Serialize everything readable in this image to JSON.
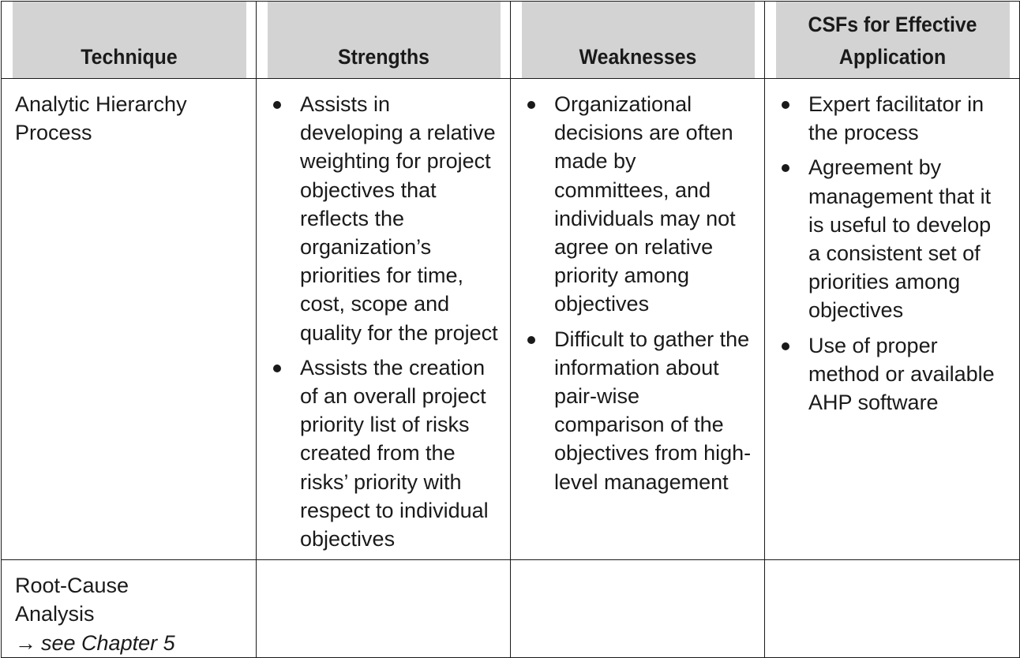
{
  "table": {
    "headers": [
      "Technique",
      "Strengths",
      "Weaknesses",
      "CSFs for Effective Application"
    ],
    "rows": [
      {
        "technique": "Analytic Hierarchy Process",
        "strengths": [
          "Assists in developing a relative weighting for project objectives that reflects the organization’s priorities for time, cost, scope and quality for the project",
          "Assists the creation of an overall project priority list of risks created from the risks’ priority with respect to individual objectives"
        ],
        "weaknesses": [
          "Organizational decisions are often made by committees, and individuals may not agree on relative priority among objectives",
          "Difficult to gather the information about pair-wise comparison of the objectives from high-level management"
        ],
        "csfs": [
          "Expert facilitator in the process",
          "Agreement by management that it is useful to develop a consistent set of priorities among objectives",
          "Use of proper method or available AHP software"
        ]
      },
      {
        "technique": "Root-Cause Analysis",
        "reference_arrow": "→",
        "reference": "see Chapter 5"
      }
    ]
  }
}
